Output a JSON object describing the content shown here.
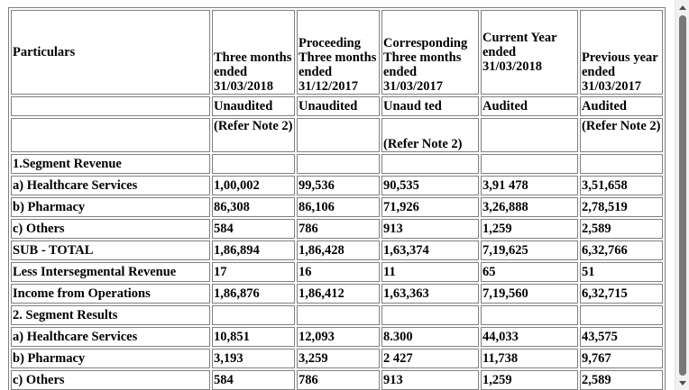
{
  "table": {
    "header": {
      "particulars": "Particulars",
      "col1": "Three months ended 31/03/2018",
      "col2": "Proceeding Three months ended 31/12/2017",
      "col3": "Corresponding Three months ended 31/03/2017",
      "col4": "Current Year ended 31/03/2018",
      "col5": "Previous year ended 31/03/2017"
    },
    "status": [
      "Unaudited",
      "Unaudited",
      "Unaud ted",
      "Audited",
      "Audited"
    ],
    "notes": {
      "col1": "(Refer Note 2)",
      "col3": "(Refer Note 2)",
      "col5": "(Refer Note 2)"
    },
    "rows": [
      {
        "label": "1.Segment Revenue",
        "v": [
          "",
          "",
          "",
          "",
          ""
        ]
      },
      {
        "label": "a) Healthcare Services",
        "v": [
          "1,00,002",
          "99,536",
          "90,535",
          "3,91 478",
          "3,51,658"
        ]
      },
      {
        "label": "b) Pharmacy",
        "v": [
          "86,308",
          "86,106",
          "71,926",
          "3,26,888",
          "2,78,519"
        ]
      },
      {
        "label": "c) Others",
        "v": [
          "584",
          "786",
          "913",
          "1,259",
          "2,589"
        ]
      },
      {
        "label": "SUB - TOTAL",
        "v": [
          "1,86,894",
          "1,86,428",
          "1,63,374",
          "7,19,625",
          "6,32,766"
        ]
      },
      {
        "label": "Less Intersegmental Revenue",
        "v": [
          "17",
          "16",
          "11",
          "65",
          "51"
        ]
      },
      {
        "label": "Income from Operations",
        "v": [
          "1,86,876",
          "1,86,412",
          "1,63,363",
          "7,19,560",
          "6,32,715"
        ]
      },
      {
        "label": "2. Segment Results",
        "v": [
          "",
          "",
          "",
          "",
          ""
        ]
      },
      {
        "label": "a) Healthcare Services",
        "v": [
          "10,851",
          "12,093",
          "8.300",
          "44,033",
          "43,575"
        ]
      },
      {
        "label": "b) Pharmacy",
        "v": [
          "3,193",
          "3,259",
          "2 427",
          "11,738",
          "9,767"
        ]
      },
      {
        "label": "c) Others",
        "v": [
          "584",
          "786",
          "913",
          "1,259",
          "2,589"
        ]
      }
    ]
  },
  "icons": {
    "scroll_up": "arrow-up-icon",
    "scroll_down": "arrow-down-icon"
  }
}
